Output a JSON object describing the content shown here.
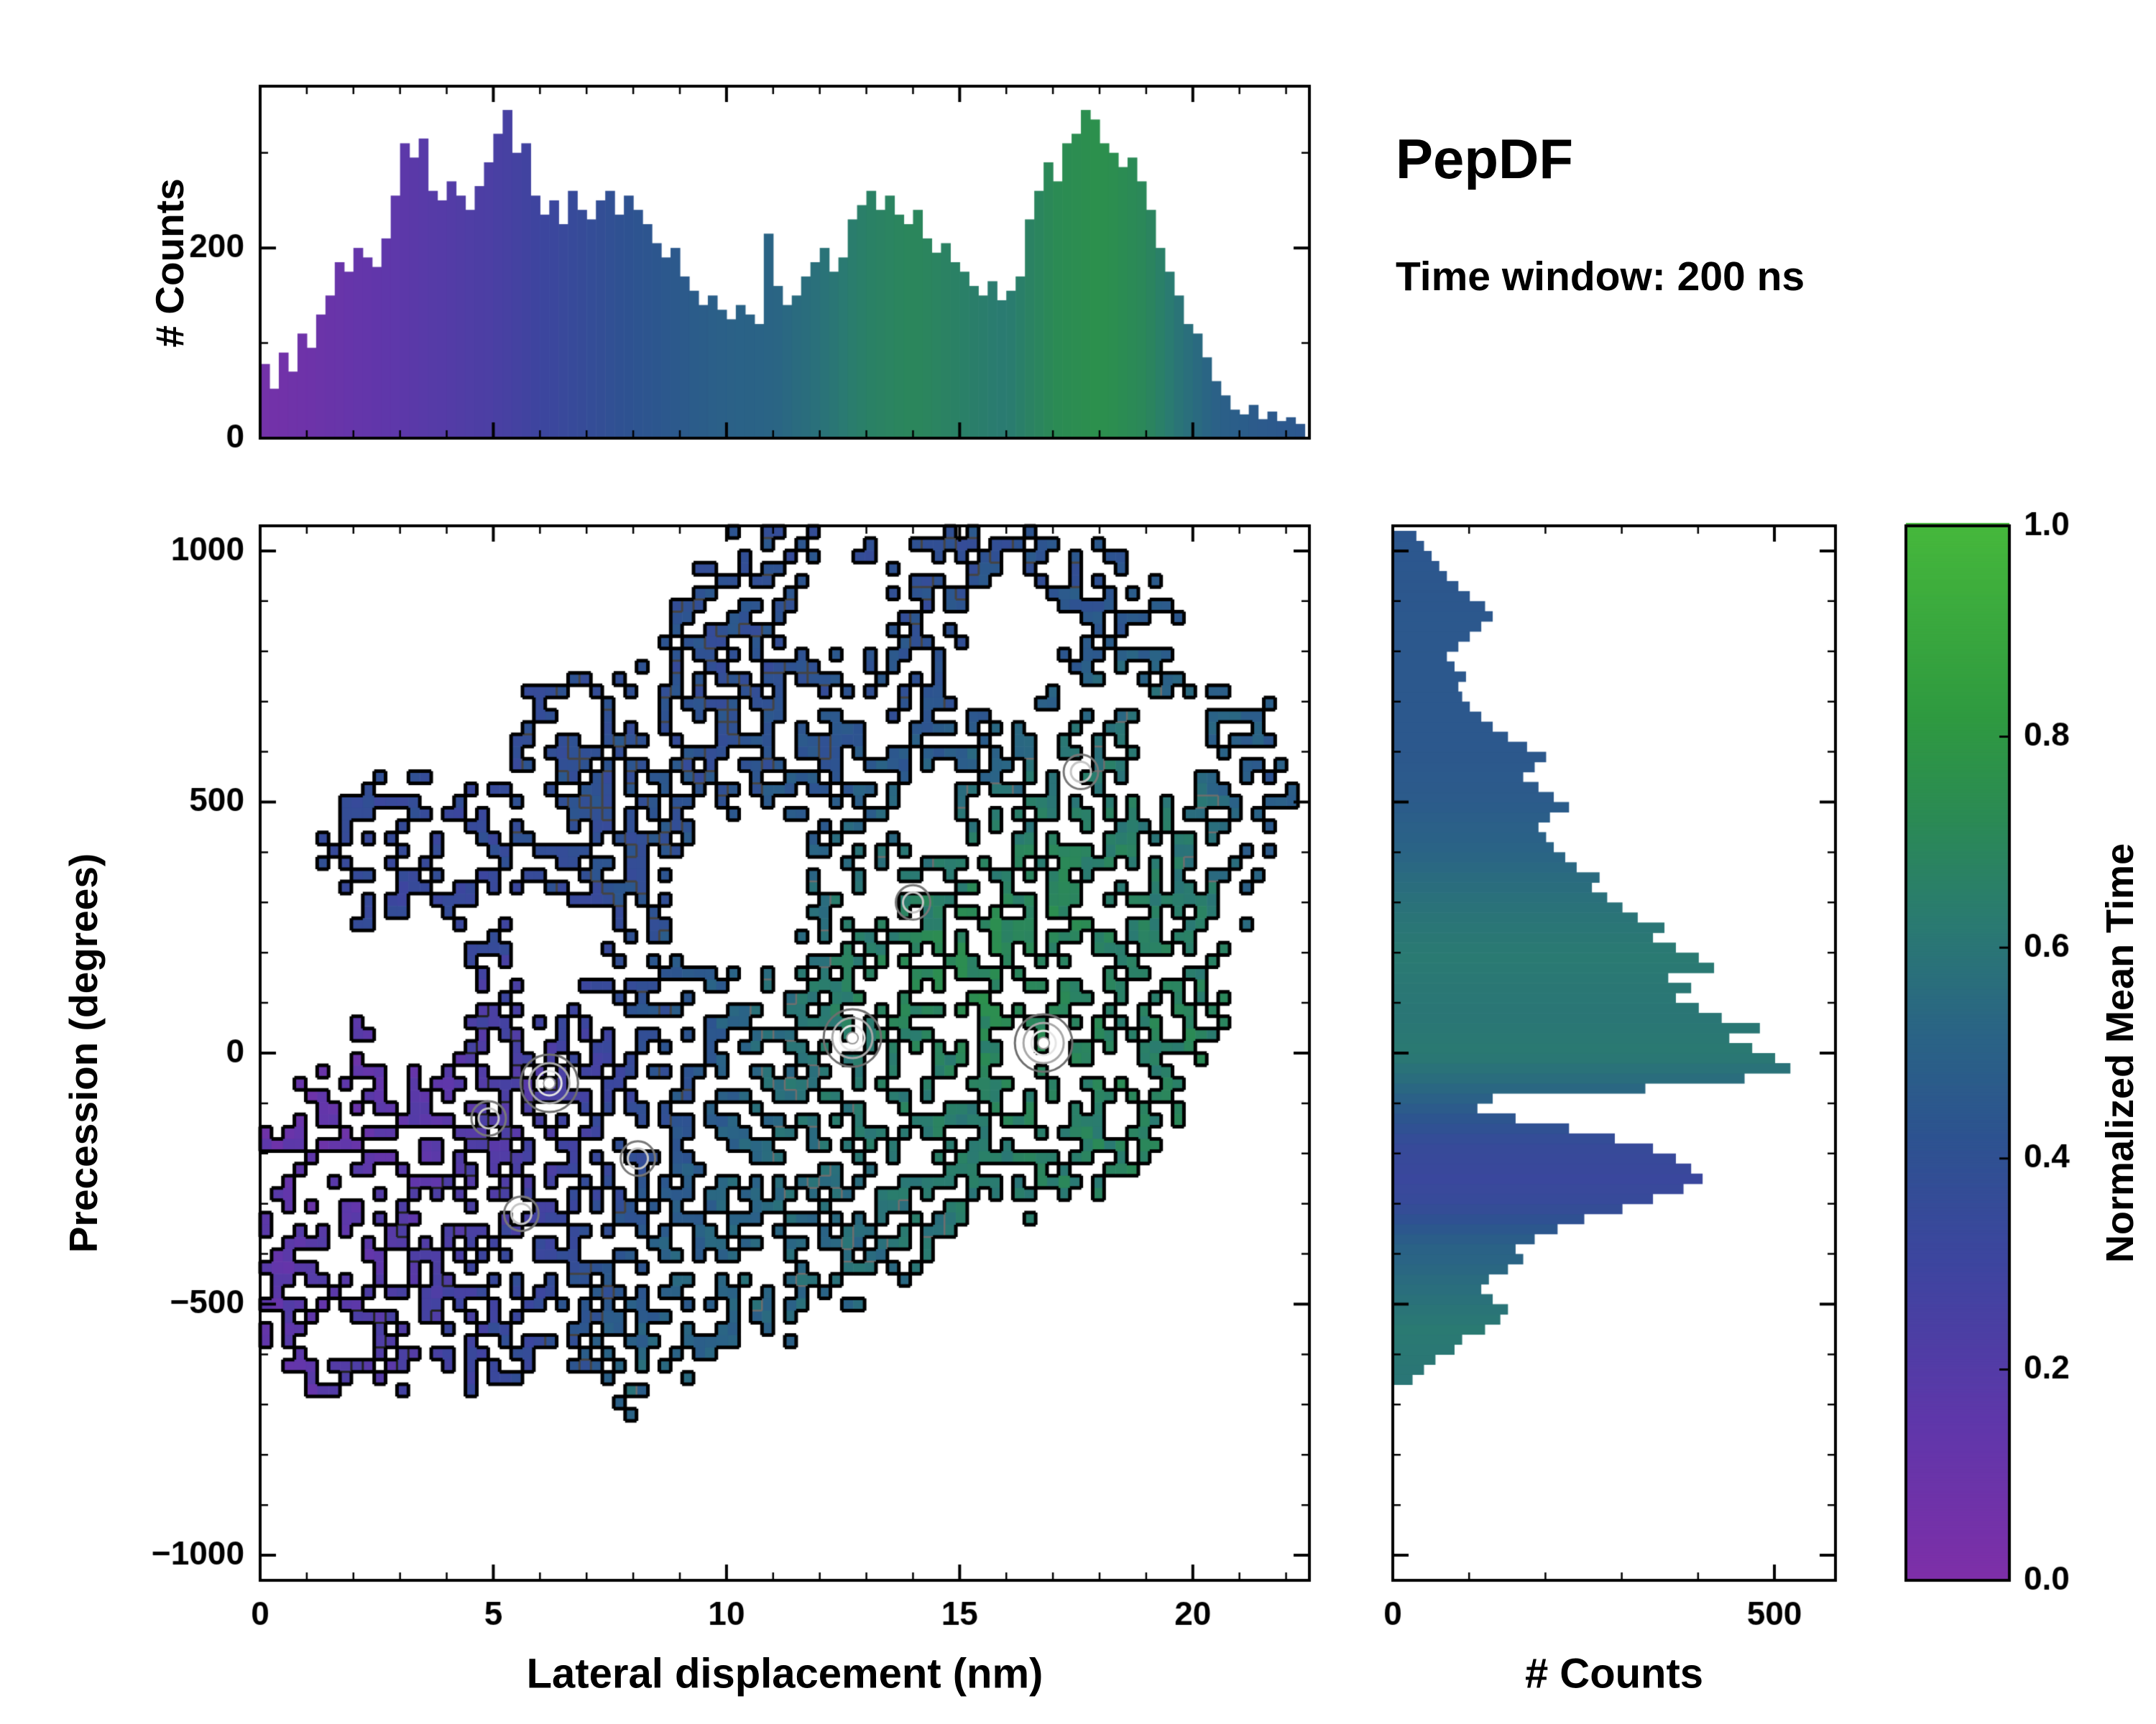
{
  "title": {
    "name": "PepDF",
    "subtitle": "Time window: 200 ns"
  },
  "colors": {
    "background": "#ffffff",
    "axis": "#000000",
    "colormap_stops": [
      [
        0.0,
        "#7e2fa8"
      ],
      [
        0.15,
        "#5f37aa"
      ],
      [
        0.3,
        "#3d459f"
      ],
      [
        0.42,
        "#2d5390"
      ],
      [
        0.52,
        "#2a6485"
      ],
      [
        0.62,
        "#2a7a72"
      ],
      [
        0.72,
        "#2b8a55"
      ],
      [
        0.82,
        "#2f9a40"
      ],
      [
        1.0,
        "#46b83c"
      ]
    ]
  },
  "colorbar": {
    "label": "Normalized Mean Time",
    "range": [
      0,
      1
    ],
    "tick_values": [
      0,
      0.2,
      0.4,
      0.6,
      0.8,
      1.0
    ],
    "tick_labels": [
      "0.0",
      "0.2",
      "0.4",
      "0.6",
      "0.8",
      "1.0"
    ]
  },
  "chart_data": [
    {
      "type": "bar",
      "name": "top_histogram",
      "ylabel": "# Counts",
      "xlim": [
        0,
        22.5
      ],
      "ylim": [
        0,
        370
      ],
      "x_start": 0,
      "bin_width": 0.2,
      "values": [
        78,
        52,
        90,
        70,
        110,
        95,
        130,
        150,
        185,
        175,
        200,
        190,
        180,
        210,
        255,
        310,
        295,
        315,
        260,
        250,
        270,
        255,
        240,
        265,
        290,
        320,
        345,
        300,
        310,
        255,
        235,
        250,
        225,
        260,
        240,
        230,
        250,
        260,
        235,
        255,
        240,
        225,
        205,
        190,
        200,
        170,
        155,
        140,
        150,
        135,
        125,
        140,
        130,
        120,
        215,
        160,
        140,
        150,
        170,
        185,
        200,
        175,
        190,
        230,
        245,
        260,
        240,
        255,
        235,
        225,
        240,
        210,
        195,
        205,
        185,
        175,
        160,
        150,
        165,
        145,
        155,
        170,
        230,
        260,
        290,
        270,
        310,
        320,
        345,
        335,
        310,
        300,
        285,
        295,
        270,
        240,
        200,
        175,
        150,
        120,
        110,
        85,
        60,
        45,
        30,
        25,
        35,
        20,
        28,
        18,
        22,
        15
      ],
      "mean_time_points": [
        [
          0,
          0.05
        ],
        [
          1,
          0.08
        ],
        [
          2,
          0.12
        ],
        [
          3,
          0.16
        ],
        [
          4,
          0.2
        ],
        [
          5,
          0.24
        ],
        [
          6,
          0.3
        ],
        [
          7,
          0.36
        ],
        [
          8,
          0.42
        ],
        [
          9,
          0.46
        ],
        [
          10,
          0.5
        ],
        [
          11,
          0.52
        ],
        [
          12,
          0.58
        ],
        [
          13,
          0.66
        ],
        [
          14,
          0.7
        ],
        [
          15,
          0.66
        ],
        [
          16,
          0.62
        ],
        [
          17,
          0.72
        ],
        [
          18,
          0.76
        ],
        [
          19,
          0.7
        ],
        [
          19.8,
          0.58
        ],
        [
          20.5,
          0.5
        ],
        [
          21.5,
          0.46
        ],
        [
          22.4,
          0.44
        ]
      ],
      "yticks": {
        "values": [
          0,
          200
        ],
        "labels": [
          "0",
          "200"
        ]
      },
      "xticks": {
        "values": [
          0,
          5,
          10,
          15,
          20
        ],
        "labels": []
      }
    },
    {
      "type": "heatmap",
      "name": "joint_distribution",
      "xlabel": "Lateral displacement (nm)",
      "ylabel": "Precession (degrees)",
      "xlim": [
        0,
        22.5
      ],
      "ylim": [
        -1050,
        1050
      ],
      "grid": [
        92,
        86
      ],
      "occupancy_threshold": 0.35,
      "hole_fraction": 0.05,
      "noise_seed": 42,
      "contour_levels": [
        0.22,
        0.4,
        0.58,
        0.85
      ],
      "clusters": [
        {
          "x": 3.5,
          "y": -250,
          "rx": 3.2,
          "ry": 280,
          "value": 0.12,
          "amp": 1.0
        },
        {
          "x": 1.5,
          "y": -450,
          "rx": 2.2,
          "ry": 220,
          "value": 0.18,
          "amp": 0.9
        },
        {
          "x": 6.0,
          "y": -80,
          "rx": 2.5,
          "ry": 260,
          "value": 0.3,
          "amp": 1.0
        },
        {
          "x": 5.0,
          "y": -420,
          "rx": 3.5,
          "ry": 220,
          "value": 0.45,
          "amp": 0.9
        },
        {
          "x": 9.0,
          "y": -420,
          "rx": 3.0,
          "ry": 220,
          "value": 0.6,
          "amp": 0.9
        },
        {
          "x": 12.0,
          "y": -250,
          "rx": 2.5,
          "ry": 220,
          "value": 0.6,
          "amp": 0.85
        },
        {
          "x": 9.5,
          "y": 50,
          "rx": 2.5,
          "ry": 250,
          "value": 0.5,
          "amp": 0.9
        },
        {
          "x": 13.0,
          "y": 100,
          "rx": 2.5,
          "ry": 300,
          "value": 0.75,
          "amp": 1.0
        },
        {
          "x": 16.5,
          "y": 200,
          "rx": 3.0,
          "ry": 350,
          "value": 0.8,
          "amp": 1.0
        },
        {
          "x": 18.5,
          "y": 0,
          "rx": 2.0,
          "ry": 250,
          "value": 0.7,
          "amp": 0.8
        },
        {
          "x": 15.0,
          "y": -150,
          "rx": 2.5,
          "ry": 200,
          "value": 0.65,
          "amp": 0.8
        },
        {
          "x": 18.0,
          "y": 550,
          "rx": 2.5,
          "ry": 250,
          "value": 0.7,
          "amp": 0.85
        },
        {
          "x": 13.5,
          "y": 650,
          "rx": 4.0,
          "ry": 300,
          "value": 0.45,
          "amp": 0.9
        },
        {
          "x": 16.0,
          "y": 850,
          "rx": 3.5,
          "ry": 220,
          "value": 0.45,
          "amp": 0.85
        },
        {
          "x": 10.5,
          "y": 880,
          "rx": 2.0,
          "ry": 180,
          "value": 0.45,
          "amp": 0.7
        },
        {
          "x": 8.0,
          "y": 500,
          "rx": 2.5,
          "ry": 220,
          "value": 0.45,
          "amp": 0.8
        },
        {
          "x": 4.5,
          "y": 300,
          "rx": 2.5,
          "ry": 250,
          "value": 0.4,
          "amp": 0.7
        },
        {
          "x": 2.5,
          "y": 420,
          "rx": 1.5,
          "ry": 150,
          "value": 0.4,
          "amp": 0.6
        },
        {
          "x": 11.0,
          "y": 300,
          "rx": 1.8,
          "ry": 200,
          "value": 0.55,
          "amp": 0.6
        },
        {
          "x": 21.3,
          "y": 520,
          "rx": 1.2,
          "ry": 200,
          "value": 0.48,
          "amp": 0.7
        },
        {
          "x": 7.9,
          "y": -620,
          "rx": 0.45,
          "ry": 60,
          "value": 0.6,
          "amp": 1.1
        },
        {
          "x": 7.9,
          "y": -700,
          "rx": 0.3,
          "ry": 45,
          "value": 0.6,
          "amp": 1.0
        },
        {
          "x": 11.4,
          "y": 1040,
          "rx": 0.5,
          "ry": 70,
          "value": 0.45,
          "amp": 1.0
        },
        {
          "x": 19.0,
          "y": 300,
          "rx": 1.5,
          "ry": 200,
          "value": 0.65,
          "amp": 0.7
        },
        {
          "x": 6.5,
          "y": 650,
          "rx": 1.2,
          "ry": 150,
          "value": 0.45,
          "amp": 0.6
        }
      ],
      "voids": [
        {
          "x": 3.2,
          "y": 130,
          "rx": 1.1,
          "ry": 140
        },
        {
          "x": 6.2,
          "y": 220,
          "rx": 0.9,
          "ry": 110
        },
        {
          "x": 10.3,
          "y": 330,
          "rx": 1.3,
          "ry": 160
        },
        {
          "x": 16.2,
          "y": 820,
          "rx": 1.1,
          "ry": 120
        },
        {
          "x": 12.4,
          "y": 900,
          "rx": 0.8,
          "ry": 90
        },
        {
          "x": 19.5,
          "y": 620,
          "rx": 0.8,
          "ry": 90
        },
        {
          "x": 14.2,
          "y": 480,
          "rx": 0.7,
          "ry": 80
        }
      ],
      "density_peaks": [
        {
          "x": 6.2,
          "y": -60,
          "major": true
        },
        {
          "x": 12.7,
          "y": 30,
          "major": true
        },
        {
          "x": 16.8,
          "y": 20,
          "major": true
        },
        {
          "x": 4.9,
          "y": -130,
          "major": false
        },
        {
          "x": 5.6,
          "y": -320,
          "major": false
        },
        {
          "x": 8.1,
          "y": -210,
          "major": false
        },
        {
          "x": 17.6,
          "y": 560,
          "major": false
        },
        {
          "x": 14.0,
          "y": 300,
          "major": false
        }
      ],
      "xticks": {
        "values": [
          0,
          5,
          10,
          15,
          20
        ],
        "labels": [
          "0",
          "5",
          "10",
          "15",
          "20"
        ]
      },
      "yticks": {
        "values": [
          -1000,
          -500,
          0,
          500,
          1000
        ],
        "labels": [
          "−1000",
          "−500",
          "0",
          "500",
          "1000"
        ]
      }
    },
    {
      "type": "bar-horizontal",
      "name": "right_histogram",
      "xlabel": "# Counts",
      "xlim": [
        0,
        580
      ],
      "ylim": [
        -1050,
        1050
      ],
      "y_start": -650,
      "bin_width": 20,
      "values": [
        25,
        40,
        55,
        80,
        90,
        120,
        140,
        150,
        130,
        115,
        125,
        150,
        170,
        160,
        185,
        215,
        250,
        300,
        340,
        380,
        405,
        390,
        370,
        340,
        290,
        230,
        160,
        110,
        130,
        330,
        460,
        520,
        500,
        470,
        440,
        480,
        430,
        400,
        370,
        390,
        360,
        420,
        400,
        370,
        340,
        355,
        320,
        300,
        280,
        260,
        270,
        240,
        225,
        210,
        200,
        190,
        205,
        230,
        210,
        190,
        170,
        185,
        200,
        175,
        150,
        130,
        115,
        100,
        90,
        85,
        95,
        80,
        70,
        85,
        100,
        115,
        130,
        120,
        100,
        85,
        70,
        60,
        50,
        40,
        30
      ],
      "mean_time_points": [
        [
          -650,
          0.6
        ],
        [
          -550,
          0.62
        ],
        [
          -450,
          0.55
        ],
        [
          -380,
          0.5
        ],
        [
          -300,
          0.35
        ],
        [
          -250,
          0.32
        ],
        [
          -180,
          0.35
        ],
        [
          -120,
          0.45
        ],
        [
          -60,
          0.55
        ],
        [
          0,
          0.62
        ],
        [
          80,
          0.6
        ],
        [
          200,
          0.62
        ],
        [
          300,
          0.58
        ],
        [
          400,
          0.52
        ],
        [
          500,
          0.47
        ],
        [
          600,
          0.45
        ],
        [
          800,
          0.45
        ],
        [
          1030,
          0.44
        ]
      ],
      "xticks": {
        "values": [
          0,
          500
        ],
        "labels": [
          "0",
          "500"
        ]
      }
    }
  ]
}
